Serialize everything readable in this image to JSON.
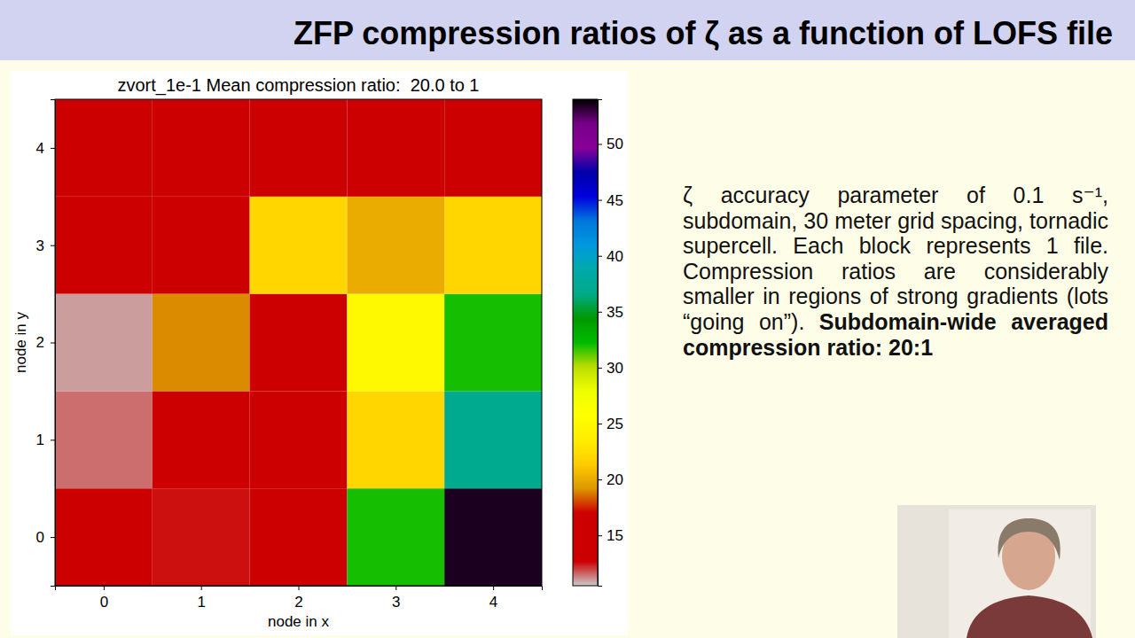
{
  "slide": {
    "title": "ZFP compression ratios of ζ as a function of LOFS file",
    "text": "ζ accuracy parameter of 0.1 s⁻¹, subdomain, 30 meter grid spacing, tornadic supercell. Each block represents 1 file. Compression ratios are considerably smaller in regions of strong gradients (lots “going on”).",
    "emphasis": "Subdomain-wide averaged compression ratio: 20:1"
  },
  "chart_data": {
    "type": "heatmap",
    "title": "zvort_1e-1 Mean compression ratio:  20.0 to 1",
    "x_label": "node in x",
    "y_label": "node in y",
    "x": [
      0,
      1,
      2,
      3,
      4
    ],
    "y": [
      0,
      1,
      2,
      3,
      4
    ],
    "xlim": [
      -0.5,
      4.5
    ],
    "ylim": [
      -0.5,
      4.5
    ],
    "xticks": [
      0,
      1,
      2,
      3,
      4
    ],
    "yticks": [
      0,
      1,
      2,
      3,
      4
    ],
    "z": [
      [
        14.5,
        12.5,
        15.5,
        32,
        53.5
      ],
      [
        11.5,
        14,
        14,
        22,
        37
      ],
      [
        11,
        19,
        17,
        25,
        32
      ],
      [
        13,
        15,
        22,
        20,
        22
      ],
      [
        15,
        13.5,
        14,
        14.5,
        16
      ]
    ],
    "color_range": [
      10.5,
      54
    ],
    "color_ticks": [
      15,
      20,
      25,
      30,
      35,
      40,
      45,
      50
    ]
  }
}
